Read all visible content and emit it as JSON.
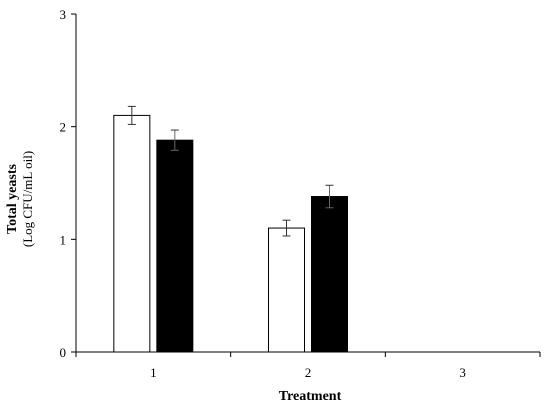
{
  "chart_data": {
    "type": "bar",
    "categories": [
      "1",
      "2",
      "3"
    ],
    "series": [
      {
        "color": "#ffffff",
        "values": [
          2.1,
          1.1,
          0
        ],
        "errors": [
          0.08,
          0.07,
          0
        ]
      },
      {
        "color": "#000000",
        "values": [
          1.88,
          1.38,
          0
        ],
        "errors": [
          0.09,
          0.1,
          0
        ]
      }
    ],
    "xlabel": "Treatment",
    "ylabel_line1": "Total yeasts",
    "ylabel_line2": "(Log CFU/mL oil)",
    "ylim": [
      0,
      3
    ],
    "yticks": [
      "0",
      "1",
      "2",
      "3"
    ],
    "grid": false
  }
}
